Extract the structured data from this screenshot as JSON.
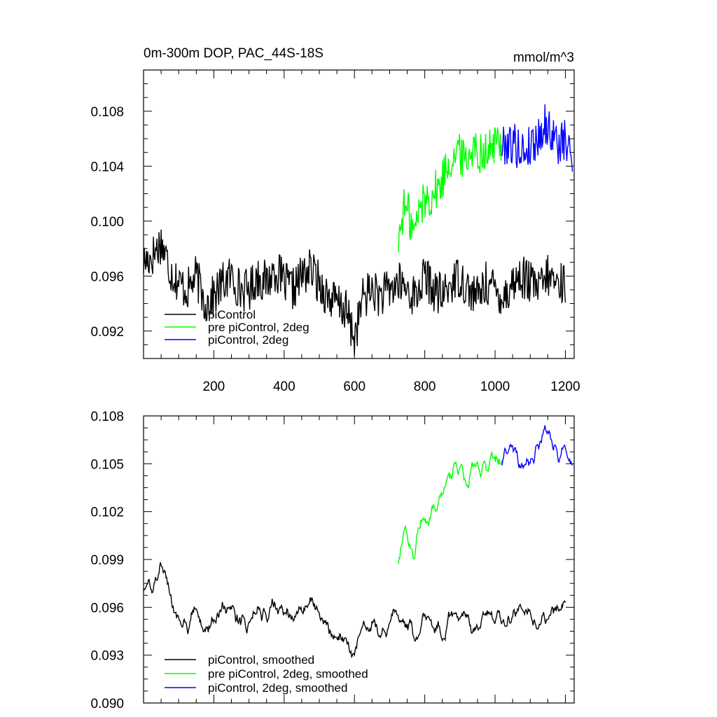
{
  "chart_data": [
    {
      "type": "line",
      "title": "0m-300m DOP, PAC_44S-18S",
      "units": "mmol/m^3",
      "xlabel": "",
      "ylabel": "",
      "xlim": [
        0,
        1225
      ],
      "ylim": [
        0.09,
        0.111
      ],
      "xticks": [
        200,
        400,
        600,
        800,
        1000,
        1200
      ],
      "xtick_labels": [
        "200",
        "400",
        "600",
        "800",
        "1000",
        "1200"
      ],
      "yticks": [
        0.092,
        0.096,
        0.1,
        0.104,
        0.108
      ],
      "ytick_labels": [
        "0.092",
        "0.096",
        "0.100",
        "0.104",
        "0.108"
      ],
      "grid": false,
      "legend_position": "bottom-left",
      "series": [
        {
          "name": "piControl",
          "color": "#000000",
          "x": [
            0,
            25,
            50,
            75,
            100,
            125,
            150,
            175,
            200,
            225,
            250,
            275,
            300,
            325,
            350,
            375,
            400,
            425,
            450,
            475,
            500,
            525,
            550,
            575,
            600,
            625,
            650,
            675,
            700,
            725,
            750,
            775,
            800,
            825,
            850,
            875,
            900,
            925,
            950,
            975,
            1000,
            1025,
            1050,
            1075,
            1100,
            1125,
            1150,
            1175,
            1200
          ],
          "y": [
            0.097,
            0.0975,
            0.0985,
            0.0965,
            0.0955,
            0.095,
            0.096,
            0.094,
            0.0945,
            0.0955,
            0.096,
            0.095,
            0.095,
            0.096,
            0.0955,
            0.0965,
            0.0955,
            0.095,
            0.096,
            0.0965,
            0.0955,
            0.0945,
            0.094,
            0.0935,
            0.0915,
            0.0945,
            0.095,
            0.0945,
            0.095,
            0.0955,
            0.095,
            0.0945,
            0.096,
            0.095,
            0.0945,
            0.0955,
            0.096,
            0.095,
            0.0945,
            0.0955,
            0.095,
            0.0945,
            0.0955,
            0.096,
            0.0955,
            0.095,
            0.096,
            0.0955,
            0.0955
          ]
        },
        {
          "name": "pre piControl, 2deg",
          "color": "#00ff00",
          "x": [
            725,
            740,
            755,
            770,
            785,
            800,
            815,
            830,
            845,
            860,
            875,
            890,
            905,
            920,
            935,
            950,
            965,
            980,
            995,
            1010,
            1020
          ],
          "y": [
            0.0985,
            0.101,
            0.1005,
            0.099,
            0.101,
            0.1015,
            0.1018,
            0.1022,
            0.1025,
            0.104,
            0.1045,
            0.105,
            0.1048,
            0.1045,
            0.1055,
            0.105,
            0.1052,
            0.105,
            0.1055,
            0.1058,
            0.1055
          ]
        },
        {
          "name": "piControl, 2deg",
          "color": "#0000ff",
          "x": [
            1020,
            1040,
            1060,
            1080,
            1100,
            1120,
            1140,
            1160,
            1180,
            1200,
            1220
          ],
          "y": [
            0.1055,
            0.1058,
            0.1055,
            0.105,
            0.1055,
            0.106,
            0.107,
            0.1065,
            0.1055,
            0.1058,
            0.1045
          ]
        }
      ]
    },
    {
      "type": "line",
      "title": "",
      "xlabel": "",
      "ylabel": "",
      "xlim": [
        0,
        1225
      ],
      "ylim": [
        0.09,
        0.108
      ],
      "xticks": [
        200,
        400,
        600,
        800,
        1000,
        1200
      ],
      "yticks": [
        0.09,
        0.093,
        0.096,
        0.099,
        0.102,
        0.105,
        0.108
      ],
      "ytick_labels": [
        "0.090",
        "0.093",
        "0.096",
        "0.099",
        "0.102",
        "0.105",
        "0.108"
      ],
      "grid": false,
      "legend_position": "bottom-left",
      "series": [
        {
          "name": "piControl, smoothed",
          "color": "#000000",
          "x": [
            0,
            25,
            50,
            75,
            100,
            125,
            150,
            175,
            200,
            225,
            250,
            275,
            300,
            325,
            350,
            375,
            400,
            425,
            450,
            475,
            500,
            525,
            550,
            575,
            600,
            625,
            650,
            675,
            700,
            725,
            750,
            775,
            800,
            825,
            850,
            875,
            900,
            925,
            950,
            975,
            1000,
            1025,
            1050,
            1075,
            1100,
            1125,
            1150,
            1175,
            1200
          ],
          "y": [
            0.0975,
            0.097,
            0.0985,
            0.0968,
            0.0955,
            0.095,
            0.096,
            0.0945,
            0.095,
            0.0958,
            0.0962,
            0.0952,
            0.095,
            0.0958,
            0.0955,
            0.0965,
            0.0955,
            0.095,
            0.096,
            0.0965,
            0.0955,
            0.0945,
            0.0942,
            0.0938,
            0.0928,
            0.0945,
            0.0948,
            0.0945,
            0.095,
            0.0955,
            0.095,
            0.0945,
            0.0958,
            0.095,
            0.0945,
            0.0955,
            0.0958,
            0.095,
            0.0945,
            0.0955,
            0.095,
            0.0947,
            0.0955,
            0.0958,
            0.0955,
            0.095,
            0.0958,
            0.0955,
            0.0962
          ]
        },
        {
          "name": "pre piControl, 2deg, smoothed",
          "color": "#00ff00",
          "x": [
            725,
            740,
            755,
            770,
            785,
            800,
            815,
            830,
            845,
            860,
            875,
            890,
            905,
            920,
            935,
            950,
            965,
            980,
            995,
            1010,
            1020
          ],
          "y": [
            0.0988,
            0.1012,
            0.1005,
            0.099,
            0.101,
            0.1015,
            0.1018,
            0.102,
            0.1025,
            0.104,
            0.1045,
            0.1052,
            0.1048,
            0.104,
            0.105,
            0.1048,
            0.105,
            0.1048,
            0.1052,
            0.1055,
            0.1052
          ]
        },
        {
          "name": "piControl, 2deg, smoothed",
          "color": "#0000ff",
          "x": [
            1020,
            1040,
            1060,
            1080,
            1100,
            1120,
            1140,
            1160,
            1180,
            1200,
            1220
          ],
          "y": [
            0.1052,
            0.1058,
            0.1055,
            0.105,
            0.1053,
            0.106,
            0.107,
            0.1062,
            0.1055,
            0.1058,
            0.1048
          ]
        }
      ]
    }
  ]
}
